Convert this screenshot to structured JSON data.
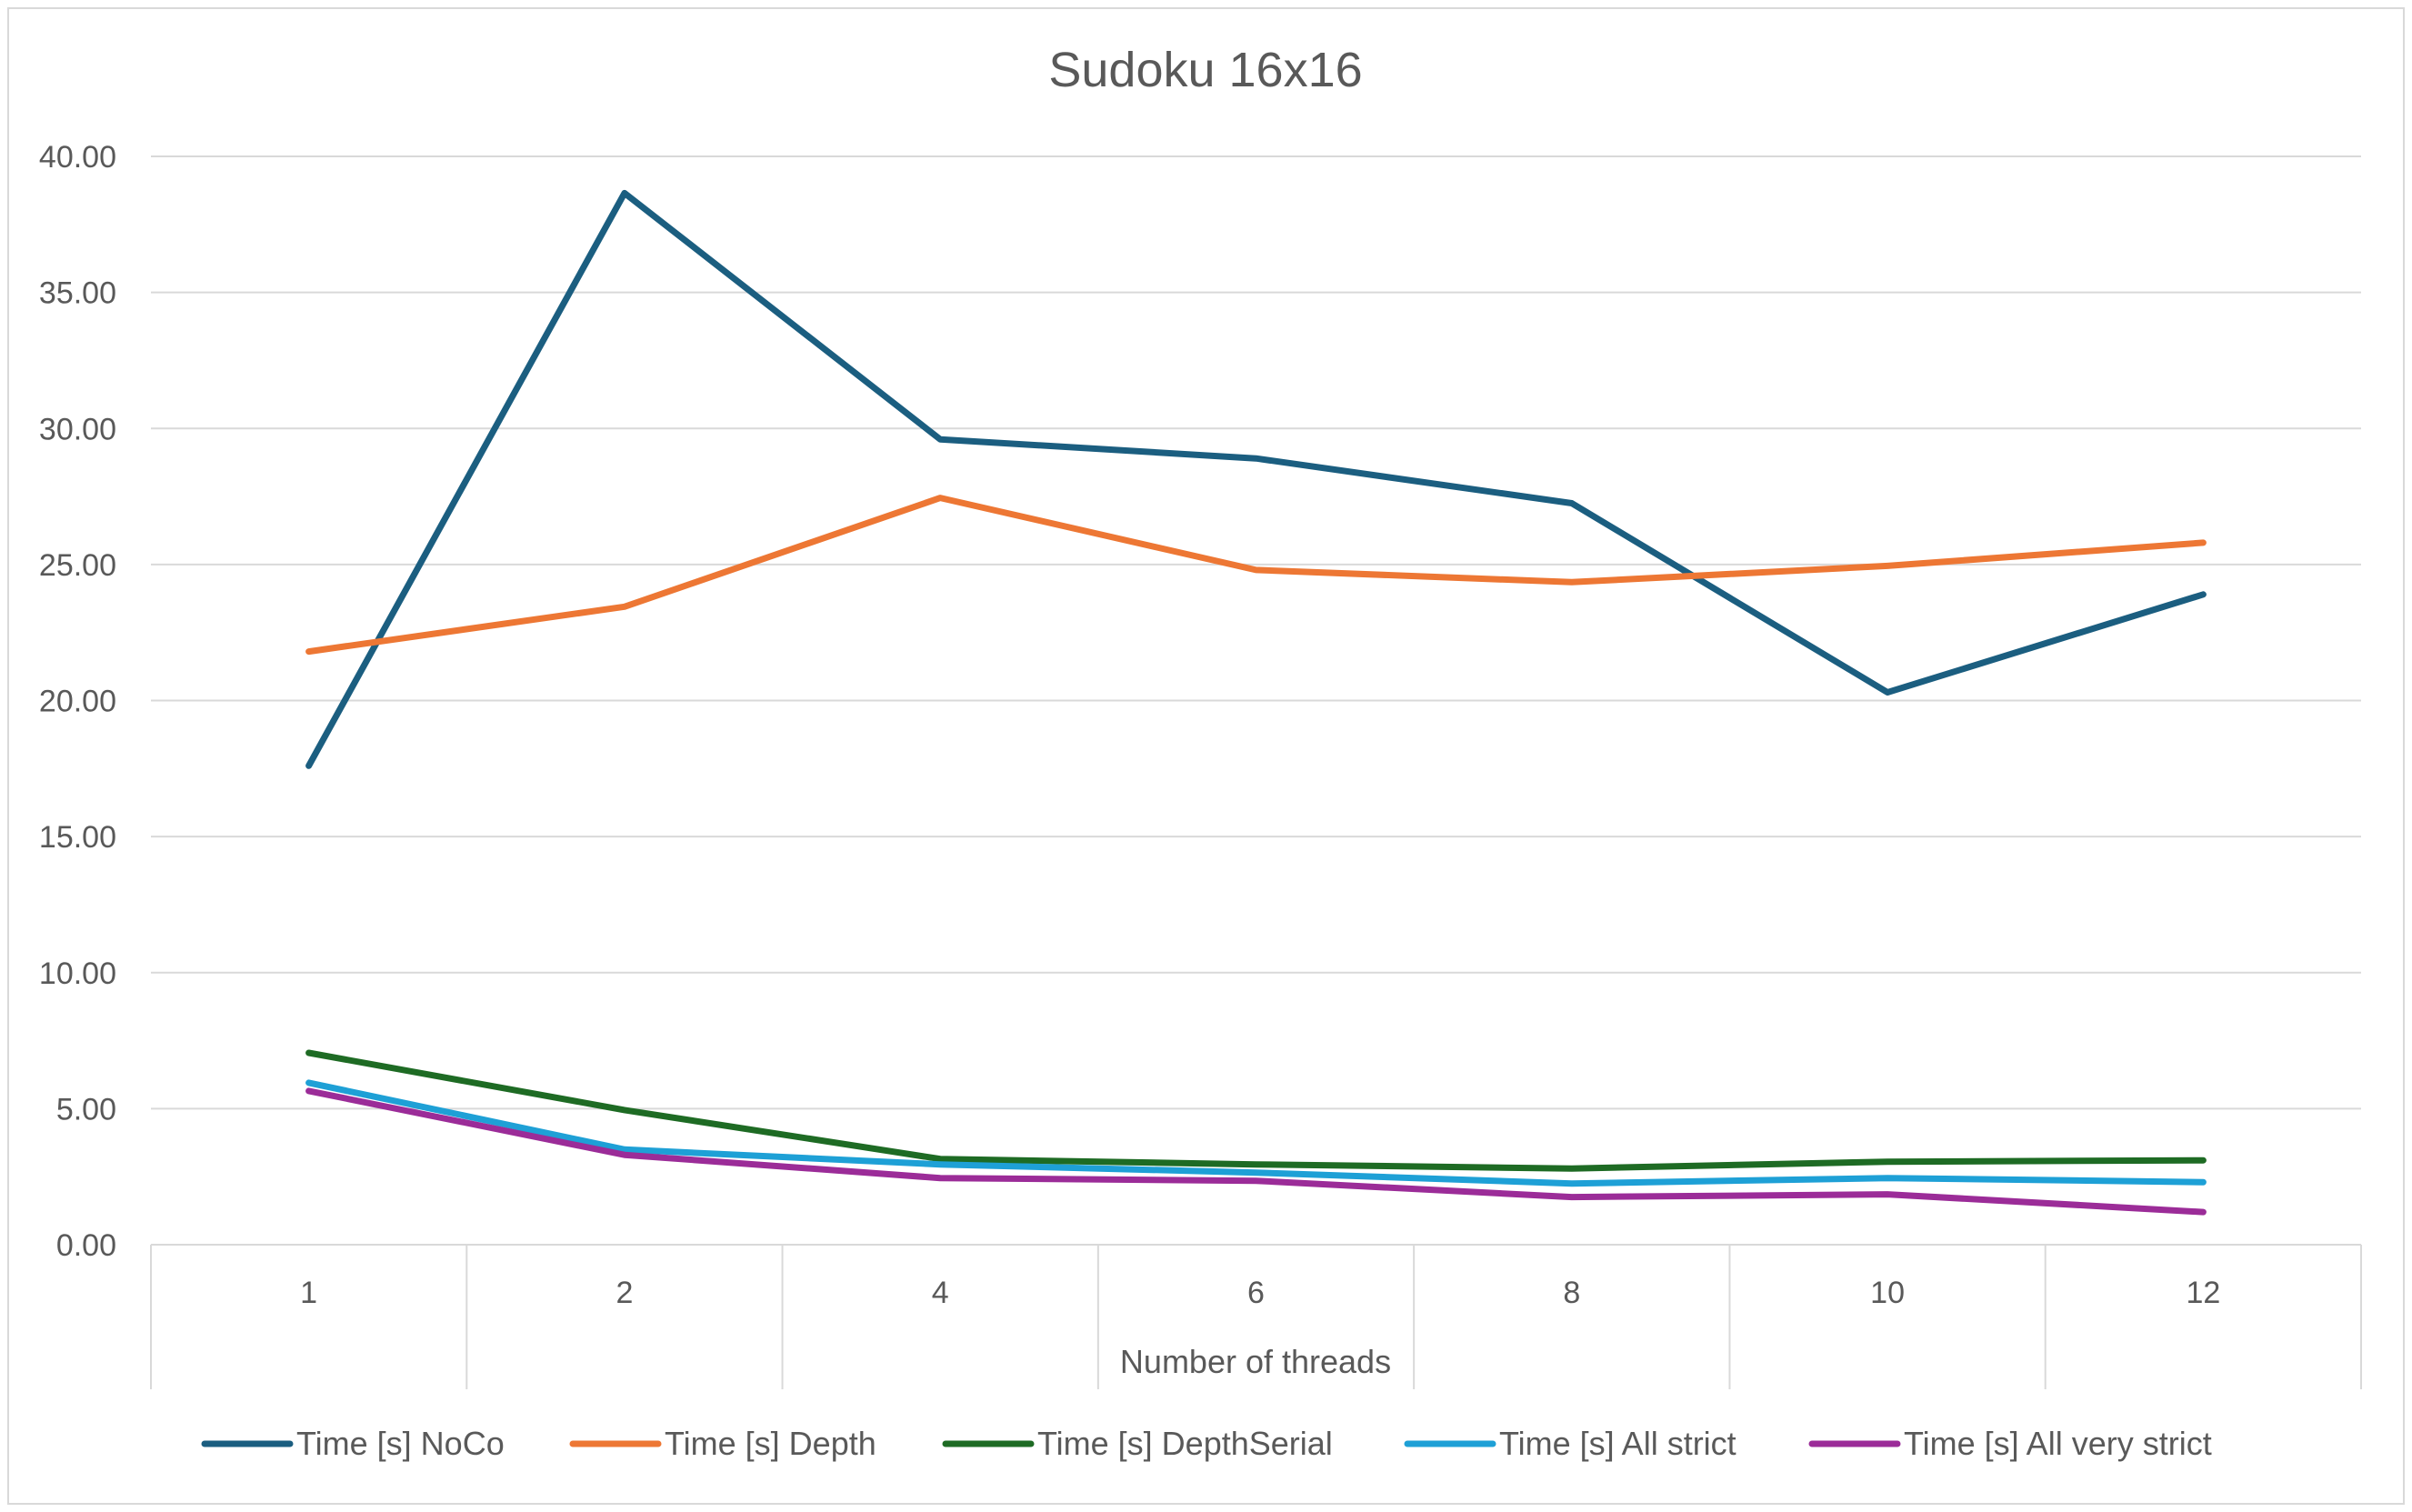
{
  "chart_data": {
    "type": "line",
    "title": "Sudoku 16x16",
    "xlabel": "Number of threads",
    "ylabel": "",
    "categories": [
      "1",
      "2",
      "4",
      "6",
      "8",
      "10",
      "12"
    ],
    "ylim": [
      0,
      40
    ],
    "ytick_labels": [
      "0.00",
      "5.00",
      "10.00",
      "15.00",
      "20.00",
      "25.00",
      "30.00",
      "35.00",
      "40.00"
    ],
    "grid": true,
    "legend_position": "bottom",
    "series": [
      {
        "name": "Time [s] NoCo",
        "color": "#1b5e80",
        "values": [
          17.6,
          38.65,
          29.6,
          28.9,
          27.25,
          20.3,
          23.9
        ]
      },
      {
        "name": "Time [s] Depth",
        "color": "#ed7734",
        "values": [
          21.8,
          23.45,
          27.45,
          24.8,
          24.35,
          24.95,
          25.8
        ]
      },
      {
        "name": "Time [s] DepthSerial",
        "color": "#1e6b24",
        "values": [
          7.05,
          4.95,
          3.15,
          2.95,
          2.8,
          3.05,
          3.1
        ]
      },
      {
        "name": "Time [s] All strict",
        "color": "#1ea0d6",
        "values": [
          5.95,
          3.5,
          2.95,
          2.65,
          2.25,
          2.45,
          2.3
        ]
      },
      {
        "name": "Time [s] All very strict",
        "color": "#9b2c98",
        "values": [
          5.65,
          3.3,
          2.45,
          2.35,
          1.75,
          1.85,
          1.2
        ]
      }
    ]
  }
}
